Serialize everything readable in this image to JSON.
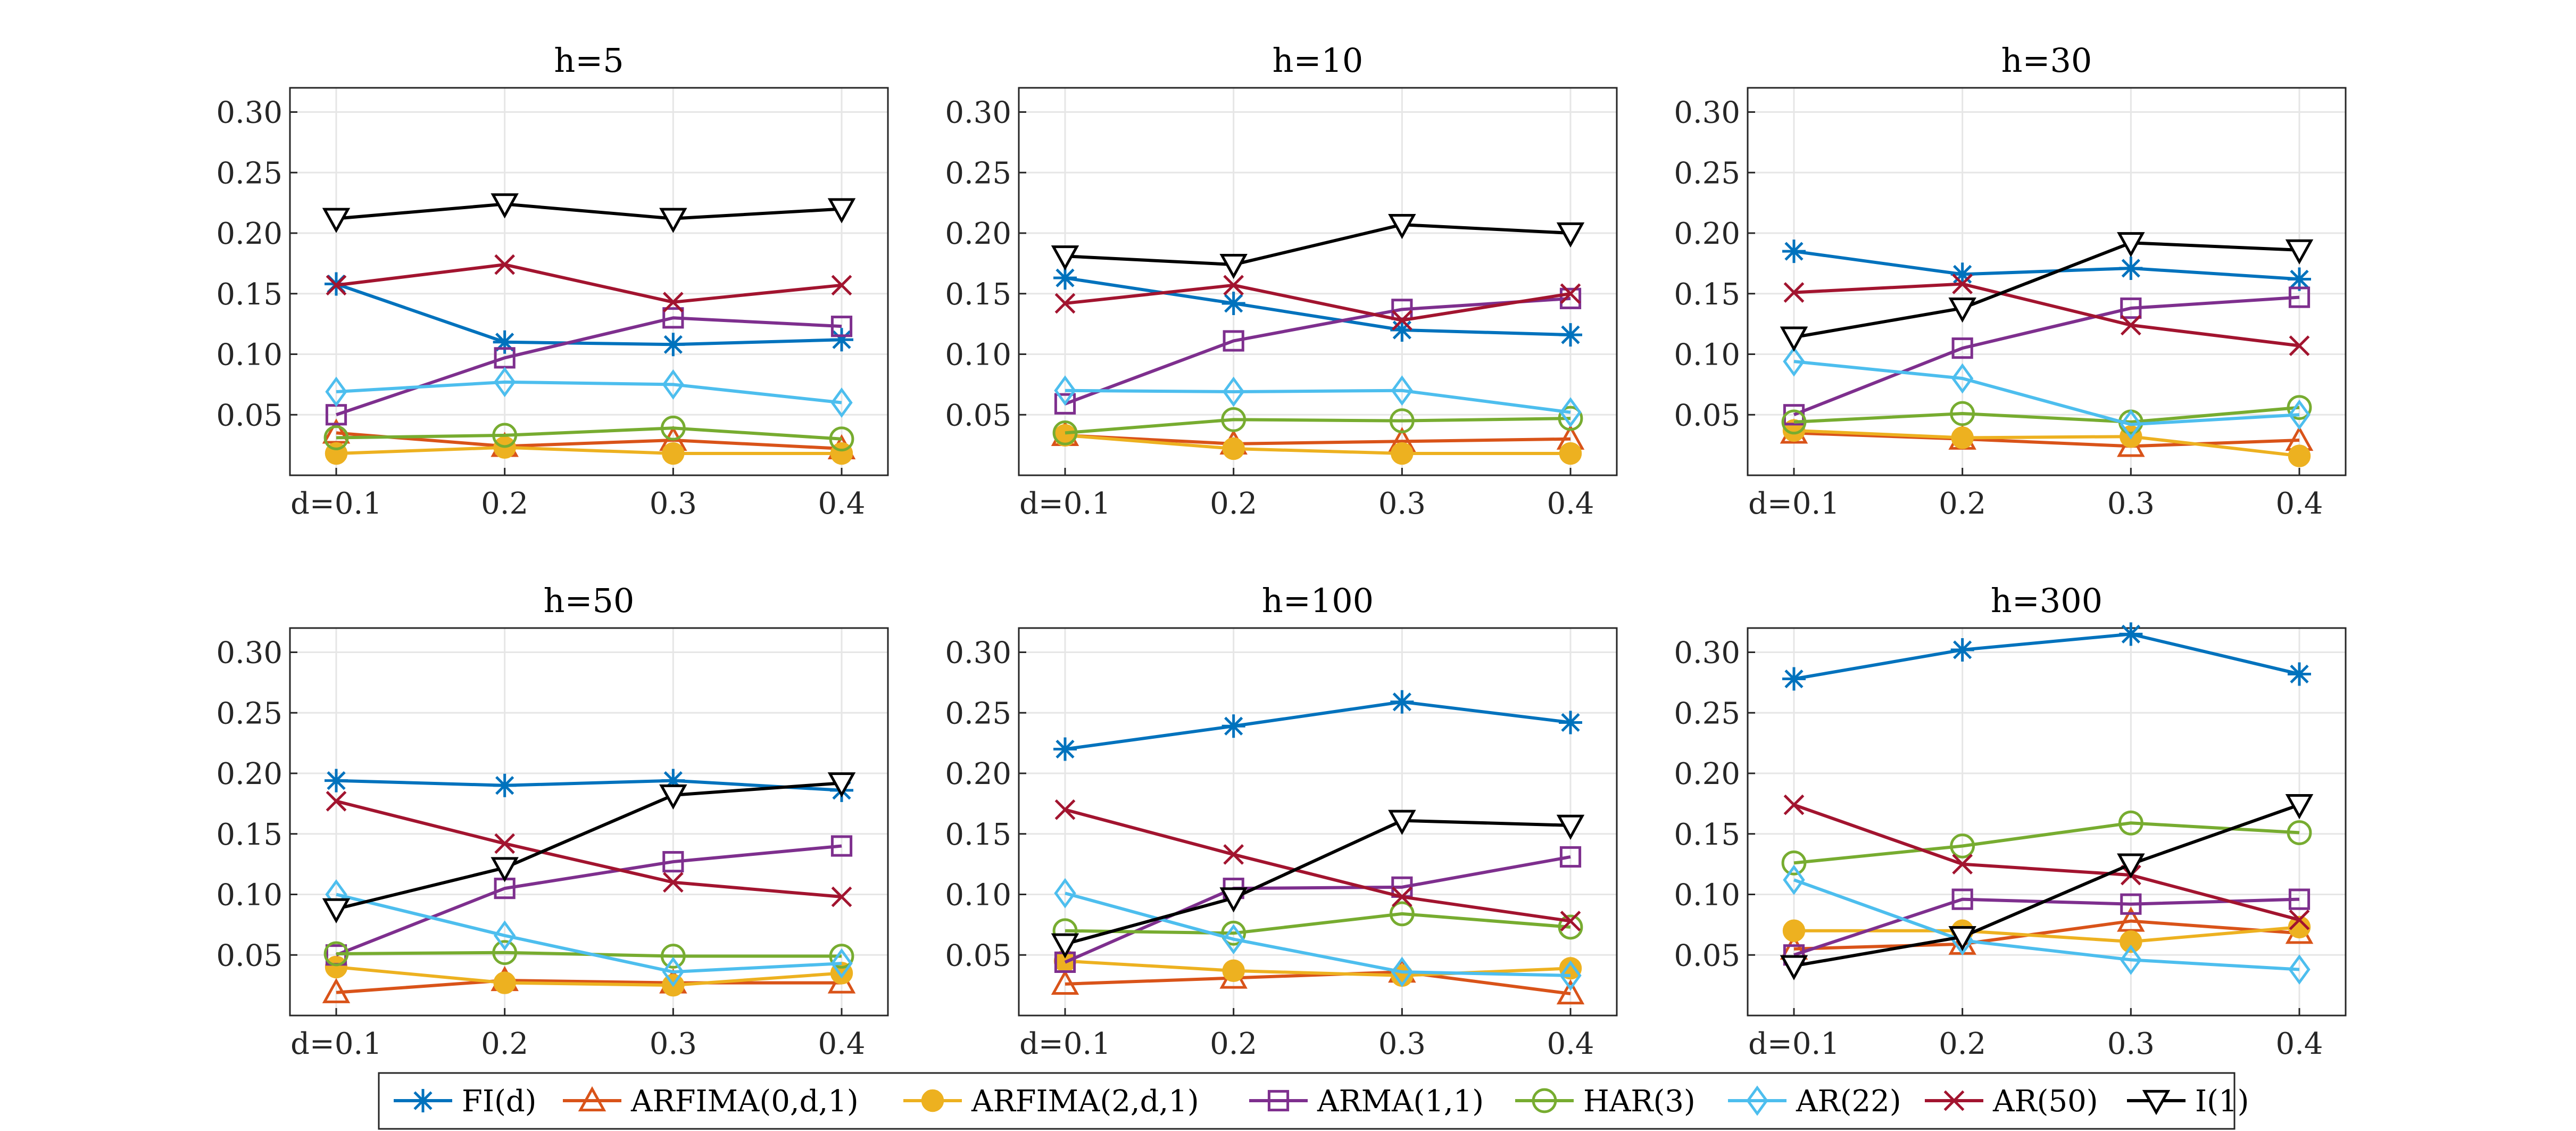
{
  "chart_data": [
    {
      "type": "line",
      "title": "h=5",
      "categories": [
        "d=0.1",
        "0.2",
        "0.3",
        "0.4"
      ],
      "ylim": [
        0,
        0.32
      ],
      "yticks": [
        "0.30",
        "0.25",
        "0.20",
        "0.15",
        "0.10",
        "0.05"
      ],
      "series": [
        {
          "name": "FI(d)",
          "values": [
            0.158,
            0.11,
            0.108,
            0.112
          ]
        },
        {
          "name": "ARFIMA(0,d,1)",
          "values": [
            0.035,
            0.024,
            0.029,
            0.022
          ]
        },
        {
          "name": "ARFIMA(2,d,1)",
          "values": [
            0.018,
            0.023,
            0.018,
            0.018
          ]
        },
        {
          "name": "ARMA(1,1)",
          "values": [
            0.05,
            0.097,
            0.13,
            0.123
          ]
        },
        {
          "name": "HAR(3)",
          "values": [
            0.031,
            0.033,
            0.039,
            0.03
          ]
        },
        {
          "name": "AR(22)",
          "values": [
            0.069,
            0.077,
            0.075,
            0.06
          ]
        },
        {
          "name": "AR(50)",
          "values": [
            0.157,
            0.174,
            0.143,
            0.157
          ]
        },
        {
          "name": "I(1)",
          "values": [
            0.212,
            0.224,
            0.212,
            0.22
          ]
        }
      ]
    },
    {
      "type": "line",
      "title": "h=10",
      "categories": [
        "d=0.1",
        "0.2",
        "0.3",
        "0.4"
      ],
      "ylim": [
        0,
        0.32
      ],
      "yticks": [
        "0.30",
        "0.25",
        "0.20",
        "0.15",
        "0.10",
        "0.05"
      ],
      "series": [
        {
          "name": "FI(d)",
          "values": [
            0.163,
            0.142,
            0.12,
            0.116
          ]
        },
        {
          "name": "ARFIMA(0,d,1)",
          "values": [
            0.033,
            0.026,
            0.028,
            0.03
          ]
        },
        {
          "name": "ARFIMA(2,d,1)",
          "values": [
            0.033,
            0.022,
            0.018,
            0.018
          ]
        },
        {
          "name": "ARMA(1,1)",
          "values": [
            0.059,
            0.111,
            0.137,
            0.146
          ]
        },
        {
          "name": "HAR(3)",
          "values": [
            0.035,
            0.046,
            0.045,
            0.047
          ]
        },
        {
          "name": "AR(22)",
          "values": [
            0.07,
            0.069,
            0.07,
            0.052
          ]
        },
        {
          "name": "AR(50)",
          "values": [
            0.142,
            0.157,
            0.128,
            0.15
          ]
        },
        {
          "name": "I(1)",
          "values": [
            0.181,
            0.174,
            0.207,
            0.2
          ]
        }
      ]
    },
    {
      "type": "line",
      "title": "h=30",
      "categories": [
        "d=0.1",
        "0.2",
        "0.3",
        "0.4"
      ],
      "ylim": [
        0,
        0.32
      ],
      "yticks": [
        "0.30",
        "0.25",
        "0.20",
        "0.15",
        "0.10",
        "0.05"
      ],
      "series": [
        {
          "name": "FI(d)",
          "values": [
            0.185,
            0.166,
            0.171,
            0.162
          ]
        },
        {
          "name": "ARFIMA(0,d,1)",
          "values": [
            0.035,
            0.03,
            0.024,
            0.029
          ]
        },
        {
          "name": "ARFIMA(2,d,1)",
          "values": [
            0.037,
            0.031,
            0.032,
            0.016
          ]
        },
        {
          "name": "ARMA(1,1)",
          "values": [
            0.05,
            0.105,
            0.138,
            0.147
          ]
        },
        {
          "name": "HAR(3)",
          "values": [
            0.044,
            0.051,
            0.044,
            0.056
          ]
        },
        {
          "name": "AR(22)",
          "values": [
            0.094,
            0.08,
            0.042,
            0.05
          ]
        },
        {
          "name": "AR(50)",
          "values": [
            0.151,
            0.158,
            0.124,
            0.107
          ]
        },
        {
          "name": "I(1)",
          "values": [
            0.114,
            0.138,
            0.192,
            0.186
          ]
        }
      ]
    },
    {
      "type": "line",
      "title": "h=50",
      "categories": [
        "d=0.1",
        "0.2",
        "0.3",
        "0.4"
      ],
      "ylim": [
        0,
        0.32
      ],
      "yticks": [
        "0.30",
        "0.25",
        "0.20",
        "0.15",
        "0.10",
        "0.05"
      ],
      "series": [
        {
          "name": "FI(d)",
          "values": [
            0.194,
            0.19,
            0.194,
            0.186
          ]
        },
        {
          "name": "ARFIMA(0,d,1)",
          "values": [
            0.019,
            0.029,
            0.027,
            0.027
          ]
        },
        {
          "name": "ARFIMA(2,d,1)",
          "values": [
            0.04,
            0.027,
            0.025,
            0.035
          ]
        },
        {
          "name": "ARMA(1,1)",
          "values": [
            0.05,
            0.105,
            0.127,
            0.14
          ]
        },
        {
          "name": "HAR(3)",
          "values": [
            0.051,
            0.052,
            0.049,
            0.049
          ]
        },
        {
          "name": "AR(22)",
          "values": [
            0.1,
            0.066,
            0.036,
            0.043
          ]
        },
        {
          "name": "AR(50)",
          "values": [
            0.177,
            0.142,
            0.11,
            0.098
          ]
        },
        {
          "name": "I(1)",
          "values": [
            0.088,
            0.122,
            0.182,
            0.192
          ]
        }
      ]
    },
    {
      "type": "line",
      "title": "h=100",
      "categories": [
        "d=0.1",
        "0.2",
        "0.3",
        "0.4"
      ],
      "ylim": [
        0,
        0.32
      ],
      "yticks": [
        "0.30",
        "0.25",
        "0.20",
        "0.15",
        "0.10",
        "0.05"
      ],
      "series": [
        {
          "name": "FI(d)",
          "values": [
            0.22,
            0.239,
            0.259,
            0.242
          ]
        },
        {
          "name": "ARFIMA(0,d,1)",
          "values": [
            0.026,
            0.031,
            0.036,
            0.018
          ]
        },
        {
          "name": "ARFIMA(2,d,1)",
          "values": [
            0.045,
            0.037,
            0.033,
            0.039
          ]
        },
        {
          "name": "ARMA(1,1)",
          "values": [
            0.044,
            0.105,
            0.106,
            0.131
          ]
        },
        {
          "name": "HAR(3)",
          "values": [
            0.07,
            0.068,
            0.084,
            0.073
          ]
        },
        {
          "name": "AR(22)",
          "values": [
            0.101,
            0.063,
            0.036,
            0.033
          ]
        },
        {
          "name": "AR(50)",
          "values": [
            0.17,
            0.133,
            0.098,
            0.078
          ]
        },
        {
          "name": "I(1)",
          "values": [
            0.059,
            0.097,
            0.161,
            0.157
          ]
        }
      ]
    },
    {
      "type": "line",
      "title": "h=300",
      "categories": [
        "d=0.1",
        "0.2",
        "0.3",
        "0.4"
      ],
      "ylim": [
        0,
        0.32
      ],
      "yticks": [
        "0.30",
        "0.25",
        "0.20",
        "0.15",
        "0.10",
        "0.05"
      ],
      "series": [
        {
          "name": "FI(d)",
          "values": [
            0.278,
            0.302,
            0.315,
            0.282
          ]
        },
        {
          "name": "ARFIMA(0,d,1)",
          "values": [
            0.055,
            0.059,
            0.078,
            0.068
          ]
        },
        {
          "name": "ARFIMA(2,d,1)",
          "values": [
            0.07,
            0.07,
            0.061,
            0.073
          ]
        },
        {
          "name": "ARMA(1,1)",
          "values": [
            0.05,
            0.096,
            0.092,
            0.096
          ]
        },
        {
          "name": "HAR(3)",
          "values": [
            0.126,
            0.14,
            0.159,
            0.151
          ]
        },
        {
          "name": "AR(22)",
          "values": [
            0.112,
            0.062,
            0.046,
            0.038
          ]
        },
        {
          "name": "AR(50)",
          "values": [
            0.174,
            0.125,
            0.116,
            0.079
          ]
        },
        {
          "name": "I(1)",
          "values": [
            0.041,
            0.065,
            0.125,
            0.174
          ]
        }
      ]
    }
  ],
  "legend": {
    "position": "bottom-center",
    "items": [
      {
        "name": "FI(d)",
        "color": "#0072BD",
        "marker": "asterisk"
      },
      {
        "name": "ARFIMA(0,d,1)",
        "color": "#D95319",
        "marker": "triangle-up"
      },
      {
        "name": "ARFIMA(2,d,1)",
        "color": "#EDB120",
        "marker": "filled-circle"
      },
      {
        "name": "ARMA(1,1)",
        "color": "#7E2F8E",
        "marker": "square"
      },
      {
        "name": "HAR(3)",
        "color": "#77AC30",
        "marker": "circle"
      },
      {
        "name": "AR(22)",
        "color": "#4DBEEE",
        "marker": "diamond"
      },
      {
        "name": "AR(50)",
        "color": "#A2142F",
        "marker": "x"
      },
      {
        "name": "I(1)",
        "color": "#000000",
        "marker": "triangle-down"
      }
    ]
  }
}
